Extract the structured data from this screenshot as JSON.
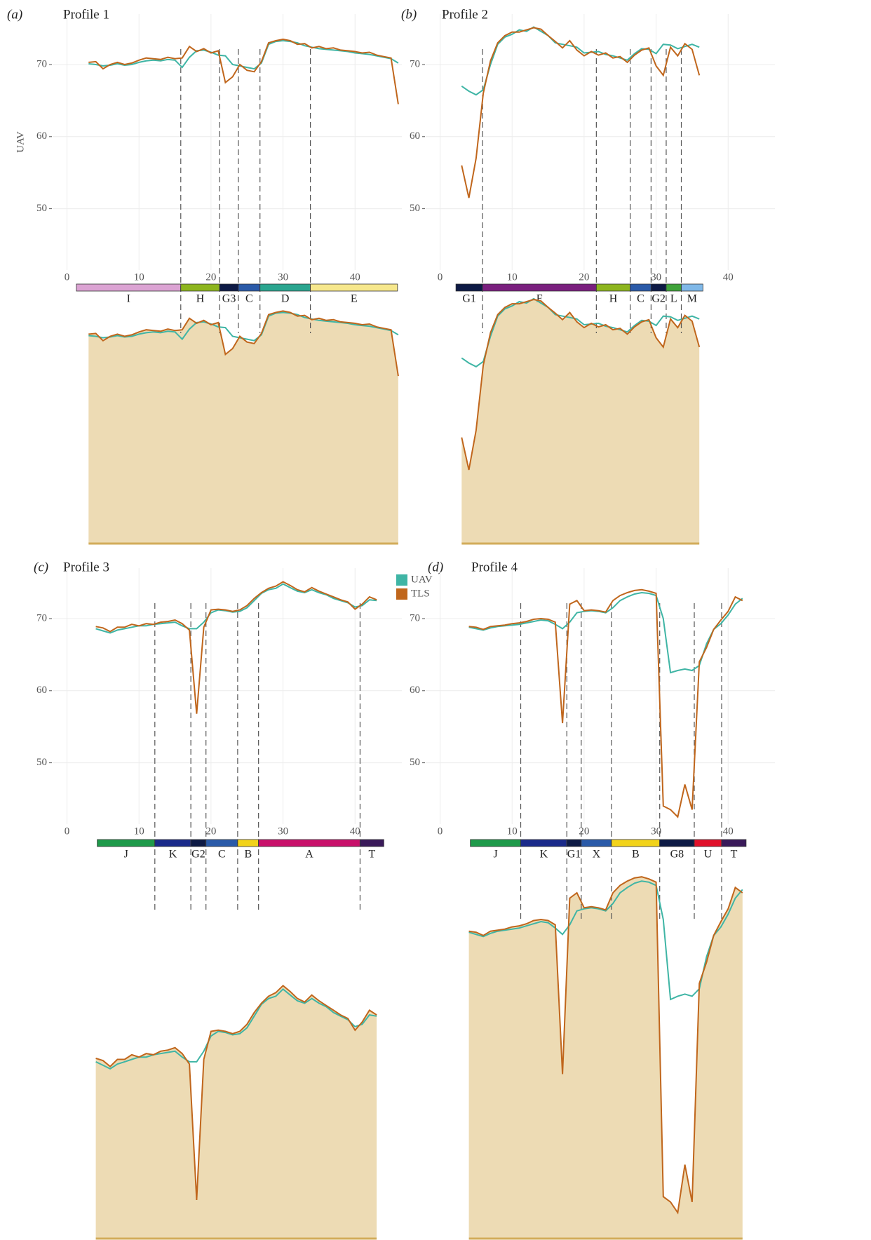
{
  "chart_data": [
    {
      "type": "line",
      "panel_label": "(a)",
      "title": "Profile 1",
      "y_label": "UAV",
      "xlim": [
        -2,
        46.5
      ],
      "xticks": [
        0,
        10,
        20,
        30,
        40
      ],
      "ylim": [
        41.5,
        77
      ],
      "yticks": [
        50,
        60,
        70
      ],
      "grid": true,
      "x": [
        3,
        4,
        5,
        6,
        7,
        8,
        9,
        10,
        11,
        12,
        13,
        14,
        15,
        16,
        17,
        18,
        19,
        20,
        21,
        22,
        23,
        24,
        25,
        26,
        27,
        28,
        29,
        30,
        31,
        32,
        33,
        34,
        35,
        36,
        37,
        38,
        39,
        40,
        41,
        42,
        43,
        44,
        45,
        46
      ],
      "series": [
        {
          "name": "UAV",
          "color": "#3fb5a5",
          "values": [
            70.1,
            70.0,
            69.8,
            69.9,
            70.1,
            69.9,
            70.0,
            70.3,
            70.5,
            70.6,
            70.5,
            70.7,
            70.6,
            69.6,
            71.0,
            71.9,
            72.0,
            71.7,
            71.3,
            71.2,
            70.0,
            69.8,
            69.6,
            69.4,
            70.2,
            72.8,
            73.2,
            73.3,
            73.2,
            73.0,
            72.6,
            72.4,
            72.2,
            72.1,
            72.0,
            71.9,
            71.8,
            71.6,
            71.5,
            71.4,
            71.2,
            71.0,
            70.8,
            70.2
          ]
        },
        {
          "name": "TLS",
          "color": "#c0661c",
          "values": [
            70.3,
            70.4,
            69.4,
            70.0,
            70.3,
            70.0,
            70.2,
            70.6,
            70.9,
            70.8,
            70.7,
            71.0,
            70.8,
            70.9,
            72.5,
            71.8,
            72.2,
            71.6,
            71.9,
            67.5,
            68.3,
            70.0,
            69.2,
            69.0,
            70.4,
            73.0,
            73.3,
            73.5,
            73.3,
            72.8,
            72.9,
            72.3,
            72.5,
            72.2,
            72.3,
            72.0,
            71.9,
            71.8,
            71.6,
            71.7,
            71.3,
            71.1,
            70.9,
            64.5
          ]
        }
      ],
      "segments": [
        {
          "name": "I",
          "color": "#dba3d3",
          "start": 1.3,
          "end": 15.8
        },
        {
          "name": "H",
          "color": "#8db51e",
          "start": 15.8,
          "end": 21.2
        },
        {
          "name": "G3",
          "color": "#0d1a45",
          "start": 21.2,
          "end": 23.8
        },
        {
          "name": "C",
          "color": "#2a5aa8",
          "start": 23.8,
          "end": 26.8
        },
        {
          "name": "D",
          "color": "#2aa58f",
          "start": 26.8,
          "end": 33.8
        },
        {
          "name": "E",
          "color": "#f6e78c",
          "start": 33.8,
          "end": 45.9
        }
      ]
    },
    {
      "type": "line",
      "panel_label": "(b)",
      "title": "Profile 2",
      "xlim": [
        -2,
        46.5
      ],
      "xticks": [
        0,
        10,
        20,
        30,
        40
      ],
      "ylim": [
        41.5,
        77
      ],
      "yticks": [
        50,
        60,
        70
      ],
      "grid": true,
      "x": [
        3,
        4,
        5,
        6,
        7,
        8,
        9,
        10,
        11,
        12,
        13,
        14,
        15,
        16,
        17,
        18,
        19,
        20,
        21,
        22,
        23,
        24,
        25,
        26,
        27,
        28,
        29,
        30,
        31,
        32,
        33,
        34,
        35,
        36
      ],
      "series": [
        {
          "name": "UAV",
          "color": "#3fb5a5",
          "values": [
            67.0,
            66.3,
            65.8,
            66.5,
            70.0,
            72.8,
            73.8,
            74.2,
            74.8,
            74.6,
            75.2,
            74.6,
            74.0,
            73.0,
            72.8,
            72.6,
            72.4,
            71.6,
            71.7,
            71.8,
            71.4,
            71.2,
            70.9,
            70.6,
            71.5,
            72.2,
            72.1,
            71.5,
            72.8,
            72.7,
            72.2,
            72.5,
            72.8,
            72.4
          ]
        },
        {
          "name": "TLS",
          "color": "#c0661c",
          "values": [
            56.0,
            51.5,
            57.0,
            66.0,
            70.5,
            73.0,
            74.0,
            74.5,
            74.5,
            74.8,
            75.1,
            74.9,
            74.0,
            73.2,
            72.3,
            73.3,
            72.0,
            71.2,
            71.8,
            71.3,
            71.6,
            70.9,
            71.1,
            70.3,
            71.3,
            72.0,
            72.3,
            69.8,
            68.5,
            72.4,
            71.2,
            72.9,
            72.1,
            68.5
          ]
        }
      ],
      "segments": [
        {
          "name": "G1",
          "color": "#0d1a45",
          "start": 2.2,
          "end": 5.9
        },
        {
          "name": "F",
          "color": "#7a1f7e",
          "start": 5.9,
          "end": 21.7
        },
        {
          "name": "H",
          "color": "#8db51e",
          "start": 21.7,
          "end": 26.4
        },
        {
          "name": "C",
          "color": "#2a5aa8",
          "start": 26.4,
          "end": 29.3
        },
        {
          "name": "G2",
          "color": "#0d1a45",
          "start": 29.3,
          "end": 31.4
        },
        {
          "name": "L",
          "color": "#3fa33a",
          "start": 31.4,
          "end": 33.5
        },
        {
          "name": "M",
          "color": "#7fb8e8",
          "start": 33.5,
          "end": 36.5
        }
      ]
    },
    {
      "type": "line",
      "panel_label": "(c)",
      "title": "Profile 3",
      "xlim": [
        -2,
        46.5
      ],
      "xticks": [
        0,
        10,
        20,
        30,
        40
      ],
      "ylim": [
        41.5,
        77
      ],
      "yticks": [
        50,
        60,
        70
      ],
      "grid": true,
      "x": [
        4,
        5,
        6,
        7,
        8,
        9,
        10,
        11,
        12,
        13,
        14,
        15,
        16,
        17,
        18,
        19,
        20,
        21,
        22,
        23,
        24,
        25,
        26,
        27,
        28,
        29,
        30,
        31,
        32,
        33,
        34,
        35,
        36,
        37,
        38,
        39,
        40,
        41,
        42,
        43
      ],
      "series": [
        {
          "name": "UAV",
          "color": "#3fb5a5",
          "values": [
            68.6,
            68.3,
            68.0,
            68.4,
            68.6,
            68.8,
            69.0,
            69.0,
            69.2,
            69.3,
            69.4,
            69.5,
            69.0,
            68.6,
            68.6,
            69.5,
            70.8,
            71.2,
            71.1,
            70.9,
            71.0,
            71.5,
            72.5,
            73.5,
            74.0,
            74.2,
            74.8,
            74.3,
            73.8,
            73.6,
            74.0,
            73.6,
            73.3,
            72.8,
            72.5,
            72.2,
            71.6,
            71.8,
            72.6,
            72.5
          ]
        },
        {
          "name": "TLS",
          "color": "#c0661c",
          "values": [
            68.9,
            68.7,
            68.2,
            68.8,
            68.8,
            69.2,
            69.0,
            69.3,
            69.2,
            69.5,
            69.6,
            69.8,
            69.3,
            68.4,
            56.8,
            68.8,
            71.2,
            71.3,
            71.2,
            71.0,
            71.2,
            71.8,
            72.8,
            73.6,
            74.2,
            74.5,
            75.1,
            74.6,
            74.0,
            73.7,
            74.3,
            73.8,
            73.4,
            73.0,
            72.6,
            72.3,
            71.3,
            72.0,
            73.0,
            72.6
          ]
        }
      ],
      "segments": [
        {
          "name": "J",
          "color": "#1e9a4a",
          "start": 4.2,
          "end": 12.2
        },
        {
          "name": "K",
          "color": "#1a2a8a",
          "start": 12.2,
          "end": 17.2
        },
        {
          "name": "G2",
          "color": "#0d1a45",
          "start": 17.2,
          "end": 19.3
        },
        {
          "name": "C",
          "color": "#2a5aa8",
          "start": 19.3,
          "end": 23.7
        },
        {
          "name": "B",
          "color": "#f2d31a",
          "start": 23.7,
          "end": 26.6
        },
        {
          "name": "A",
          "color": "#c8106a",
          "start": 26.6,
          "end": 40.7
        },
        {
          "name": "T",
          "color": "#3a1a5a",
          "start": 40.7,
          "end": 44.0
        }
      ]
    },
    {
      "type": "line",
      "panel_label": "(d)",
      "title": "Profile 4",
      "xlim": [
        -2,
        46.5
      ],
      "xticks": [
        0,
        10,
        20,
        30,
        40
      ],
      "ylim": [
        41.5,
        77
      ],
      "yticks": [
        50,
        60,
        70
      ],
      "grid": true,
      "x": [
        4,
        5,
        6,
        7,
        8,
        9,
        10,
        11,
        12,
        13,
        14,
        15,
        16,
        17,
        18,
        19,
        20,
        21,
        22,
        23,
        24,
        25,
        26,
        27,
        28,
        29,
        30,
        31,
        32,
        33,
        34,
        35,
        36,
        37,
        38,
        39,
        40,
        41,
        42
      ],
      "series": [
        {
          "name": "UAV",
          "color": "#3fb5a5",
          "values": [
            68.8,
            68.6,
            68.4,
            68.7,
            68.9,
            69.0,
            69.1,
            69.2,
            69.4,
            69.6,
            69.8,
            69.7,
            69.2,
            68.6,
            69.5,
            70.8,
            71.0,
            71.1,
            71.0,
            70.8,
            71.5,
            72.5,
            73.0,
            73.4,
            73.6,
            73.5,
            73.2,
            70.0,
            62.5,
            62.8,
            63.0,
            62.8,
            63.5,
            66.5,
            68.5,
            69.3,
            70.5,
            72.0,
            72.8
          ]
        },
        {
          "name": "TLS",
          "color": "#c0661c",
          "values": [
            68.9,
            68.8,
            68.5,
            68.9,
            69.0,
            69.1,
            69.3,
            69.4,
            69.6,
            69.9,
            70.0,
            69.9,
            69.5,
            55.5,
            72.0,
            72.5,
            71.1,
            71.2,
            71.1,
            70.9,
            72.5,
            73.2,
            73.6,
            73.9,
            74.0,
            73.8,
            73.5,
            44.0,
            43.5,
            42.5,
            47.0,
            43.5,
            64.0,
            66.0,
            68.5,
            69.8,
            71.0,
            73.0,
            72.5
          ]
        }
      ],
      "segments": [
        {
          "name": "J",
          "color": "#1e9a4a",
          "start": 4.2,
          "end": 11.2
        },
        {
          "name": "K",
          "color": "#1a2a8a",
          "start": 11.2,
          "end": 17.6
        },
        {
          "name": "G1",
          "color": "#0d1a45",
          "start": 17.6,
          "end": 19.6
        },
        {
          "name": "X",
          "color": "#2a5aa8",
          "start": 19.6,
          "end": 23.8
        },
        {
          "name": "B",
          "color": "#f2d31a",
          "start": 23.8,
          "end": 30.5
        },
        {
          "name": "G8",
          "color": "#0d1a45",
          "start": 30.5,
          "end": 35.3
        },
        {
          "name": "U",
          "color": "#e0102a",
          "start": 35.3,
          "end": 39.1
        },
        {
          "name": "T",
          "color": "#3a1a5a",
          "start": 39.1,
          "end": 42.5
        }
      ]
    }
  ]
}
